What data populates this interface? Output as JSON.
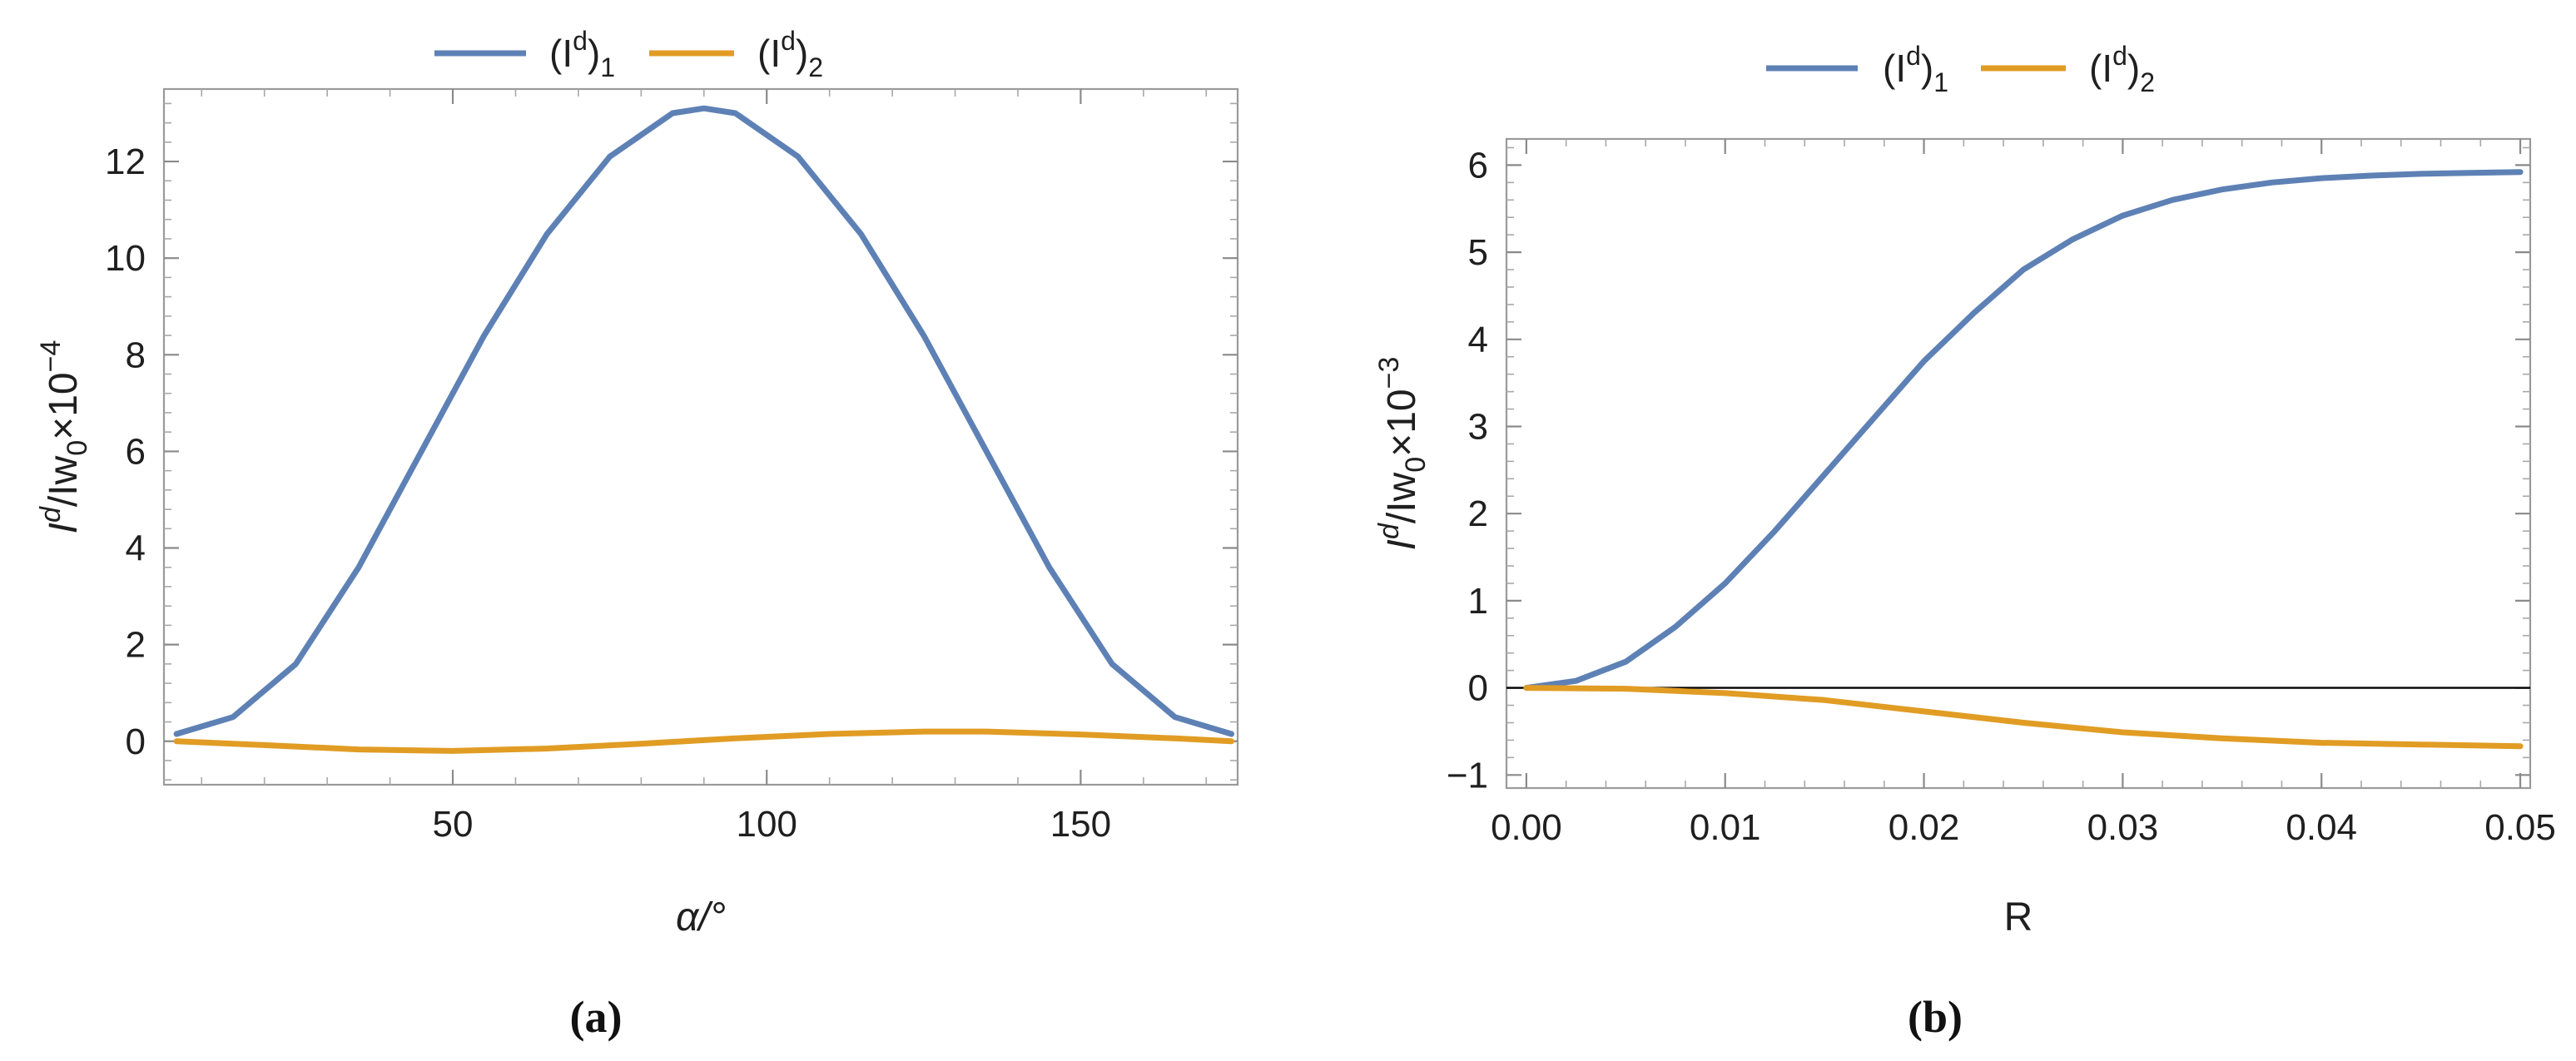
{
  "colors": {
    "series1": "#5e81b5",
    "series2": "#e19c24",
    "zero_line": "#000000"
  },
  "chart_data": [
    {
      "type": "line",
      "panel": "(a)",
      "legend": [
        "(I^d)_1",
        "(I^d)_2"
      ],
      "legend_position": "top-center",
      "xlabel": "α/°",
      "ylabel": "I^d/Iw0×10^-4",
      "xlim": [
        4,
        175
      ],
      "ylim": [
        -0.9,
        13.5
      ],
      "xticks": [
        50,
        100,
        150
      ],
      "yticks": [
        0,
        2,
        4,
        6,
        8,
        10,
        12
      ],
      "grid": false,
      "series": [
        {
          "name": "(I^d)_1",
          "x": [
            6,
            15,
            25,
            35,
            45,
            55,
            65,
            75,
            85,
            90,
            95,
            105,
            115,
            125,
            135,
            145,
            155,
            165,
            174
          ],
          "values": [
            0.15,
            0.5,
            1.6,
            3.6,
            6.0,
            8.4,
            10.5,
            12.1,
            13.0,
            13.1,
            13.0,
            12.1,
            10.5,
            8.4,
            6.0,
            3.6,
            1.6,
            0.5,
            0.15
          ]
        },
        {
          "name": "(I^d)_2",
          "x": [
            6,
            20,
            35,
            50,
            65,
            80,
            95,
            110,
            125,
            135,
            150,
            165,
            174
          ],
          "values": [
            0.0,
            -0.08,
            -0.17,
            -0.2,
            -0.15,
            -0.05,
            0.06,
            0.15,
            0.2,
            0.2,
            0.14,
            0.06,
            0.0
          ]
        }
      ]
    },
    {
      "type": "line",
      "panel": "(b)",
      "legend": [
        "(I^d)_1",
        "(I^d)_2"
      ],
      "legend_position": "top-center",
      "xlabel": "R",
      "ylabel": "I^d/Iw0×10^-3",
      "xlim": [
        -0.001,
        0.0505
      ],
      "ylim": [
        -1.15,
        6.3
      ],
      "xticks": [
        0.0,
        0.01,
        0.02,
        0.03,
        0.04,
        0.05
      ],
      "xtick_labels": [
        "0.00",
        "0.01",
        "0.02",
        "0.03",
        "0.04",
        "0.05"
      ],
      "yticks": [
        -1,
        0,
        1,
        2,
        3,
        4,
        5,
        6
      ],
      "grid": false,
      "zero_line": true,
      "series": [
        {
          "name": "(I^d)_1",
          "x": [
            0.0,
            0.0025,
            0.005,
            0.0075,
            0.01,
            0.0125,
            0.015,
            0.0175,
            0.02,
            0.0225,
            0.025,
            0.0275,
            0.03,
            0.0325,
            0.035,
            0.0375,
            0.04,
            0.0425,
            0.045,
            0.0475,
            0.05
          ],
          "values": [
            0.0,
            0.08,
            0.3,
            0.7,
            1.2,
            1.8,
            2.45,
            3.1,
            3.75,
            4.3,
            4.8,
            5.15,
            5.42,
            5.6,
            5.72,
            5.8,
            5.85,
            5.88,
            5.9,
            5.91,
            5.92
          ]
        },
        {
          "name": "(I^d)_2",
          "x": [
            0.0,
            0.005,
            0.01,
            0.015,
            0.02,
            0.025,
            0.03,
            0.035,
            0.04,
            0.045,
            0.05
          ],
          "values": [
            0.0,
            -0.01,
            -0.06,
            -0.14,
            -0.27,
            -0.4,
            -0.51,
            -0.58,
            -0.63,
            -0.65,
            -0.67
          ]
        }
      ]
    }
  ],
  "legend_entries": {
    "series1": {
      "base": "(I",
      "sup": "d",
      "close": ")",
      "sub": "1"
    },
    "series2": {
      "base": "(I",
      "sup": "d",
      "close": ")",
      "sub": "2"
    }
  },
  "axis_labels": {
    "a": {
      "x": "α/°",
      "y_base": "I",
      "y_sup": "d",
      "y_mid": "/Iw",
      "y_sub": "0",
      "y_times": "×10",
      "y_exp": "−4"
    },
    "b": {
      "x": "R",
      "y_base": "I",
      "y_sup": "d",
      "y_mid": "/Iw",
      "y_sub": "0",
      "y_times": "×10",
      "y_exp": "−3"
    }
  },
  "captions": {
    "a": "(a)",
    "b": "(b)"
  }
}
